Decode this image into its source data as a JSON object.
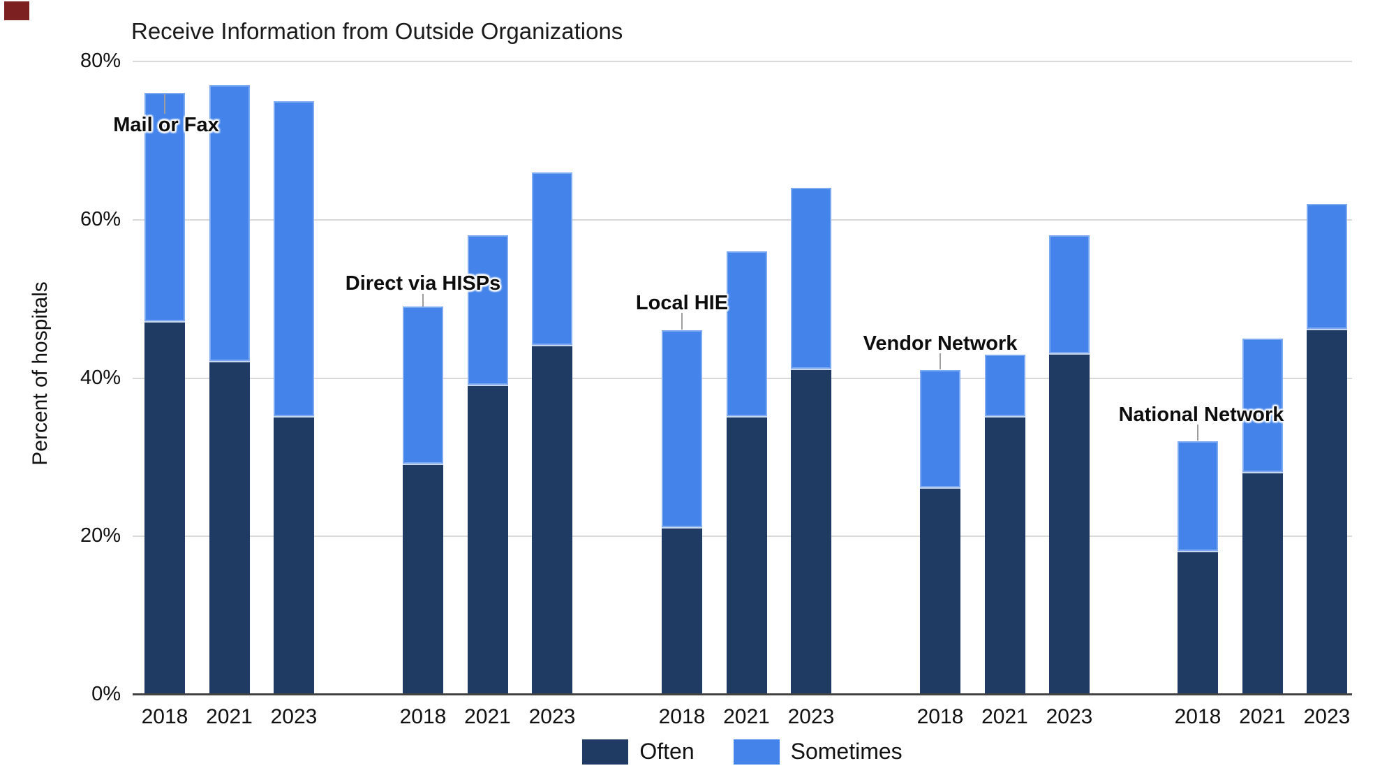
{
  "title": "Receive Information from Outside Organizations",
  "y_axis": {
    "title": "Percent of hospitals",
    "ticks": [
      {
        "label": "80%",
        "value": 80
      },
      {
        "label": "60%",
        "value": 60
      },
      {
        "label": "40%",
        "value": 40
      },
      {
        "label": "20%",
        "value": 20
      },
      {
        "label": "0%",
        "value": 0
      }
    ]
  },
  "x_axis": {
    "years": [
      "2018",
      "2021",
      "2023"
    ]
  },
  "legend": [
    {
      "label": "Often",
      "color": "#1f3b63"
    },
    {
      "label": "Sometimes",
      "color": "#4484ea"
    }
  ],
  "chart_data": {
    "type": "bar",
    "stacked": true,
    "title": "Receive Information from Outside Organizations",
    "xlabel": "",
    "ylabel": "Percent of hospitals",
    "ylim": [
      0,
      80
    ],
    "y_tick_unit": "%",
    "grid": true,
    "legend_position": "bottom",
    "series_names": [
      "Often",
      "Sometimes"
    ],
    "colors": {
      "Often": "#1f3b63",
      "Sometimes": "#4484ea"
    },
    "categories": [
      "2018",
      "2021",
      "2023"
    ],
    "groups": [
      {
        "label": "Mail or Fax",
        "often": [
          47,
          42,
          35
        ],
        "sometimes": [
          29,
          35,
          40
        ],
        "totals": [
          76,
          77,
          75
        ]
      },
      {
        "label": "Direct via HISPs",
        "often": [
          29,
          39,
          44
        ],
        "sometimes": [
          20,
          19,
          22
        ],
        "totals": [
          49,
          58,
          66
        ]
      },
      {
        "label": "Local HIE",
        "often": [
          21,
          35,
          41
        ],
        "sometimes": [
          25,
          21,
          23
        ],
        "totals": [
          46,
          56,
          64
        ]
      },
      {
        "label": "Vendor Network",
        "often": [
          26,
          35,
          43
        ],
        "sometimes": [
          15,
          8,
          15
        ],
        "totals": [
          41,
          43,
          58
        ]
      },
      {
        "label": "National Network",
        "often": [
          18,
          28,
          46
        ],
        "sometimes": [
          14,
          17,
          16
        ],
        "totals": [
          32,
          45,
          62
        ]
      }
    ]
  }
}
